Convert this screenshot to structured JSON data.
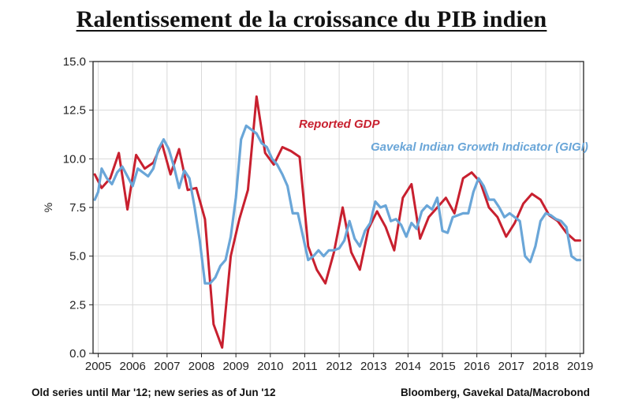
{
  "title": "Ralentissement de la croissance du PIB indien",
  "footnote_left": "Old series until Mar '12; new series as of Jun '12",
  "footnote_right": "Bloomberg, Gavekal Data/Macrobond",
  "chart_data": {
    "type": "line",
    "title": "Ralentissement de la croissance du PIB indien",
    "xlabel": "",
    "ylabel": "%",
    "xlim": [
      2004.85,
      2019.1
    ],
    "ylim": [
      0,
      15
    ],
    "yticks": [
      "0.0",
      "2.5",
      "5.0",
      "7.5",
      "10.0",
      "12.5",
      "15.0"
    ],
    "xticks": [
      "2005",
      "2006",
      "2007",
      "2008",
      "2009",
      "2010",
      "2011",
      "2012",
      "2013",
      "2014",
      "2015",
      "2016",
      "2017",
      "2018",
      "2019"
    ],
    "grid": true,
    "colors": {
      "reported": "#c8202f",
      "gigi": "#6aa6d8"
    },
    "series": [
      {
        "name": "Reported GDP",
        "x": [
          2004.9,
          2005.1,
          2005.35,
          2005.6,
          2005.85,
          2006.1,
          2006.35,
          2006.6,
          2006.85,
          2007.1,
          2007.35,
          2007.6,
          2007.85,
          2008.1,
          2008.35,
          2008.6,
          2008.85,
          2009.1,
          2009.35,
          2009.6,
          2009.85,
          2010.1,
          2010.35,
          2010.6,
          2010.85,
          2011.1,
          2011.35,
          2011.6,
          2011.85,
          2012.1,
          2012.35,
          2012.6,
          2012.85,
          2013.1,
          2013.35,
          2013.6,
          2013.85,
          2014.1,
          2014.35,
          2014.6,
          2014.85,
          2015.1,
          2015.35,
          2015.6,
          2015.85,
          2016.1,
          2016.35,
          2016.6,
          2016.85,
          2017.1,
          2017.35,
          2017.6,
          2017.85,
          2018.1,
          2018.35,
          2018.6,
          2018.85,
          2019.0
        ],
        "values": [
          9.2,
          8.5,
          9.0,
          10.3,
          7.4,
          10.2,
          9.5,
          9.8,
          10.8,
          9.2,
          10.5,
          8.4,
          8.5,
          6.9,
          1.5,
          0.3,
          5.0,
          6.9,
          8.4,
          13.2,
          10.3,
          9.7,
          10.6,
          10.4,
          10.1,
          5.5,
          4.3,
          3.6,
          5.2,
          7.5,
          5.2,
          4.3,
          6.4,
          7.3,
          6.5,
          5.3,
          8.0,
          8.7,
          5.9,
          7.0,
          7.5,
          8.0,
          7.2,
          9.0,
          9.3,
          8.8,
          7.5,
          7.0,
          6.0,
          6.7,
          7.7,
          8.2,
          7.9,
          7.1,
          6.8,
          6.2,
          5.8,
          5.8
        ]
      },
      {
        "name": "Gavekal Indian Growth Indicator (GIGI)",
        "x": [
          2004.9,
          2005.0,
          2005.1,
          2005.25,
          2005.4,
          2005.55,
          2005.7,
          2005.85,
          2006.0,
          2006.15,
          2006.3,
          2006.45,
          2006.6,
          2006.75,
          2006.9,
          2007.05,
          2007.2,
          2007.35,
          2007.5,
          2007.65,
          2007.8,
          2007.95,
          2008.1,
          2008.25,
          2008.4,
          2008.55,
          2008.7,
          2008.85,
          2009.0,
          2009.15,
          2009.3,
          2009.45,
          2009.6,
          2009.75,
          2009.9,
          2010.05,
          2010.2,
          2010.35,
          2010.5,
          2010.65,
          2010.8,
          2010.95,
          2011.1,
          2011.25,
          2011.4,
          2011.55,
          2011.7,
          2011.85,
          2012.0,
          2012.15,
          2012.3,
          2012.45,
          2012.6,
          2012.75,
          2012.9,
          2013.05,
          2013.2,
          2013.35,
          2013.5,
          2013.65,
          2013.8,
          2013.95,
          2014.1,
          2014.25,
          2014.4,
          2014.55,
          2014.7,
          2014.85,
          2015.0,
          2015.15,
          2015.3,
          2015.45,
          2015.6,
          2015.75,
          2015.9,
          2016.05,
          2016.2,
          2016.35,
          2016.5,
          2016.65,
          2016.8,
          2016.95,
          2017.1,
          2017.25,
          2017.4,
          2017.55,
          2017.7,
          2017.85,
          2018.0,
          2018.15,
          2018.3,
          2018.45,
          2018.6,
          2018.75,
          2018.9,
          2019.0
        ],
        "values": [
          7.9,
          8.3,
          9.5,
          9.0,
          8.7,
          9.3,
          9.6,
          9.1,
          8.6,
          9.5,
          9.3,
          9.1,
          9.5,
          10.5,
          11.0,
          10.5,
          9.6,
          8.5,
          9.4,
          9.0,
          7.5,
          5.8,
          3.6,
          3.6,
          3.9,
          4.5,
          4.8,
          6.0,
          8.0,
          11.0,
          11.7,
          11.5,
          11.3,
          10.8,
          10.6,
          10.0,
          9.7,
          9.2,
          8.6,
          7.2,
          7.2,
          6.0,
          4.8,
          5.0,
          5.3,
          5.0,
          5.3,
          5.3,
          5.4,
          5.8,
          6.8,
          5.9,
          5.5,
          6.3,
          6.7,
          7.8,
          7.5,
          7.6,
          6.8,
          6.9,
          6.6,
          6.0,
          6.7,
          6.4,
          7.3,
          7.6,
          7.4,
          8.0,
          6.3,
          6.2,
          7.0,
          7.1,
          7.2,
          7.2,
          8.3,
          9.0,
          8.6,
          7.9,
          7.9,
          7.5,
          7.0,
          7.2,
          7.0,
          6.8,
          5.0,
          4.7,
          5.5,
          6.8,
          7.2,
          7.1,
          6.9,
          6.8,
          6.5,
          5.0,
          4.8,
          4.8
        ]
      }
    ]
  }
}
